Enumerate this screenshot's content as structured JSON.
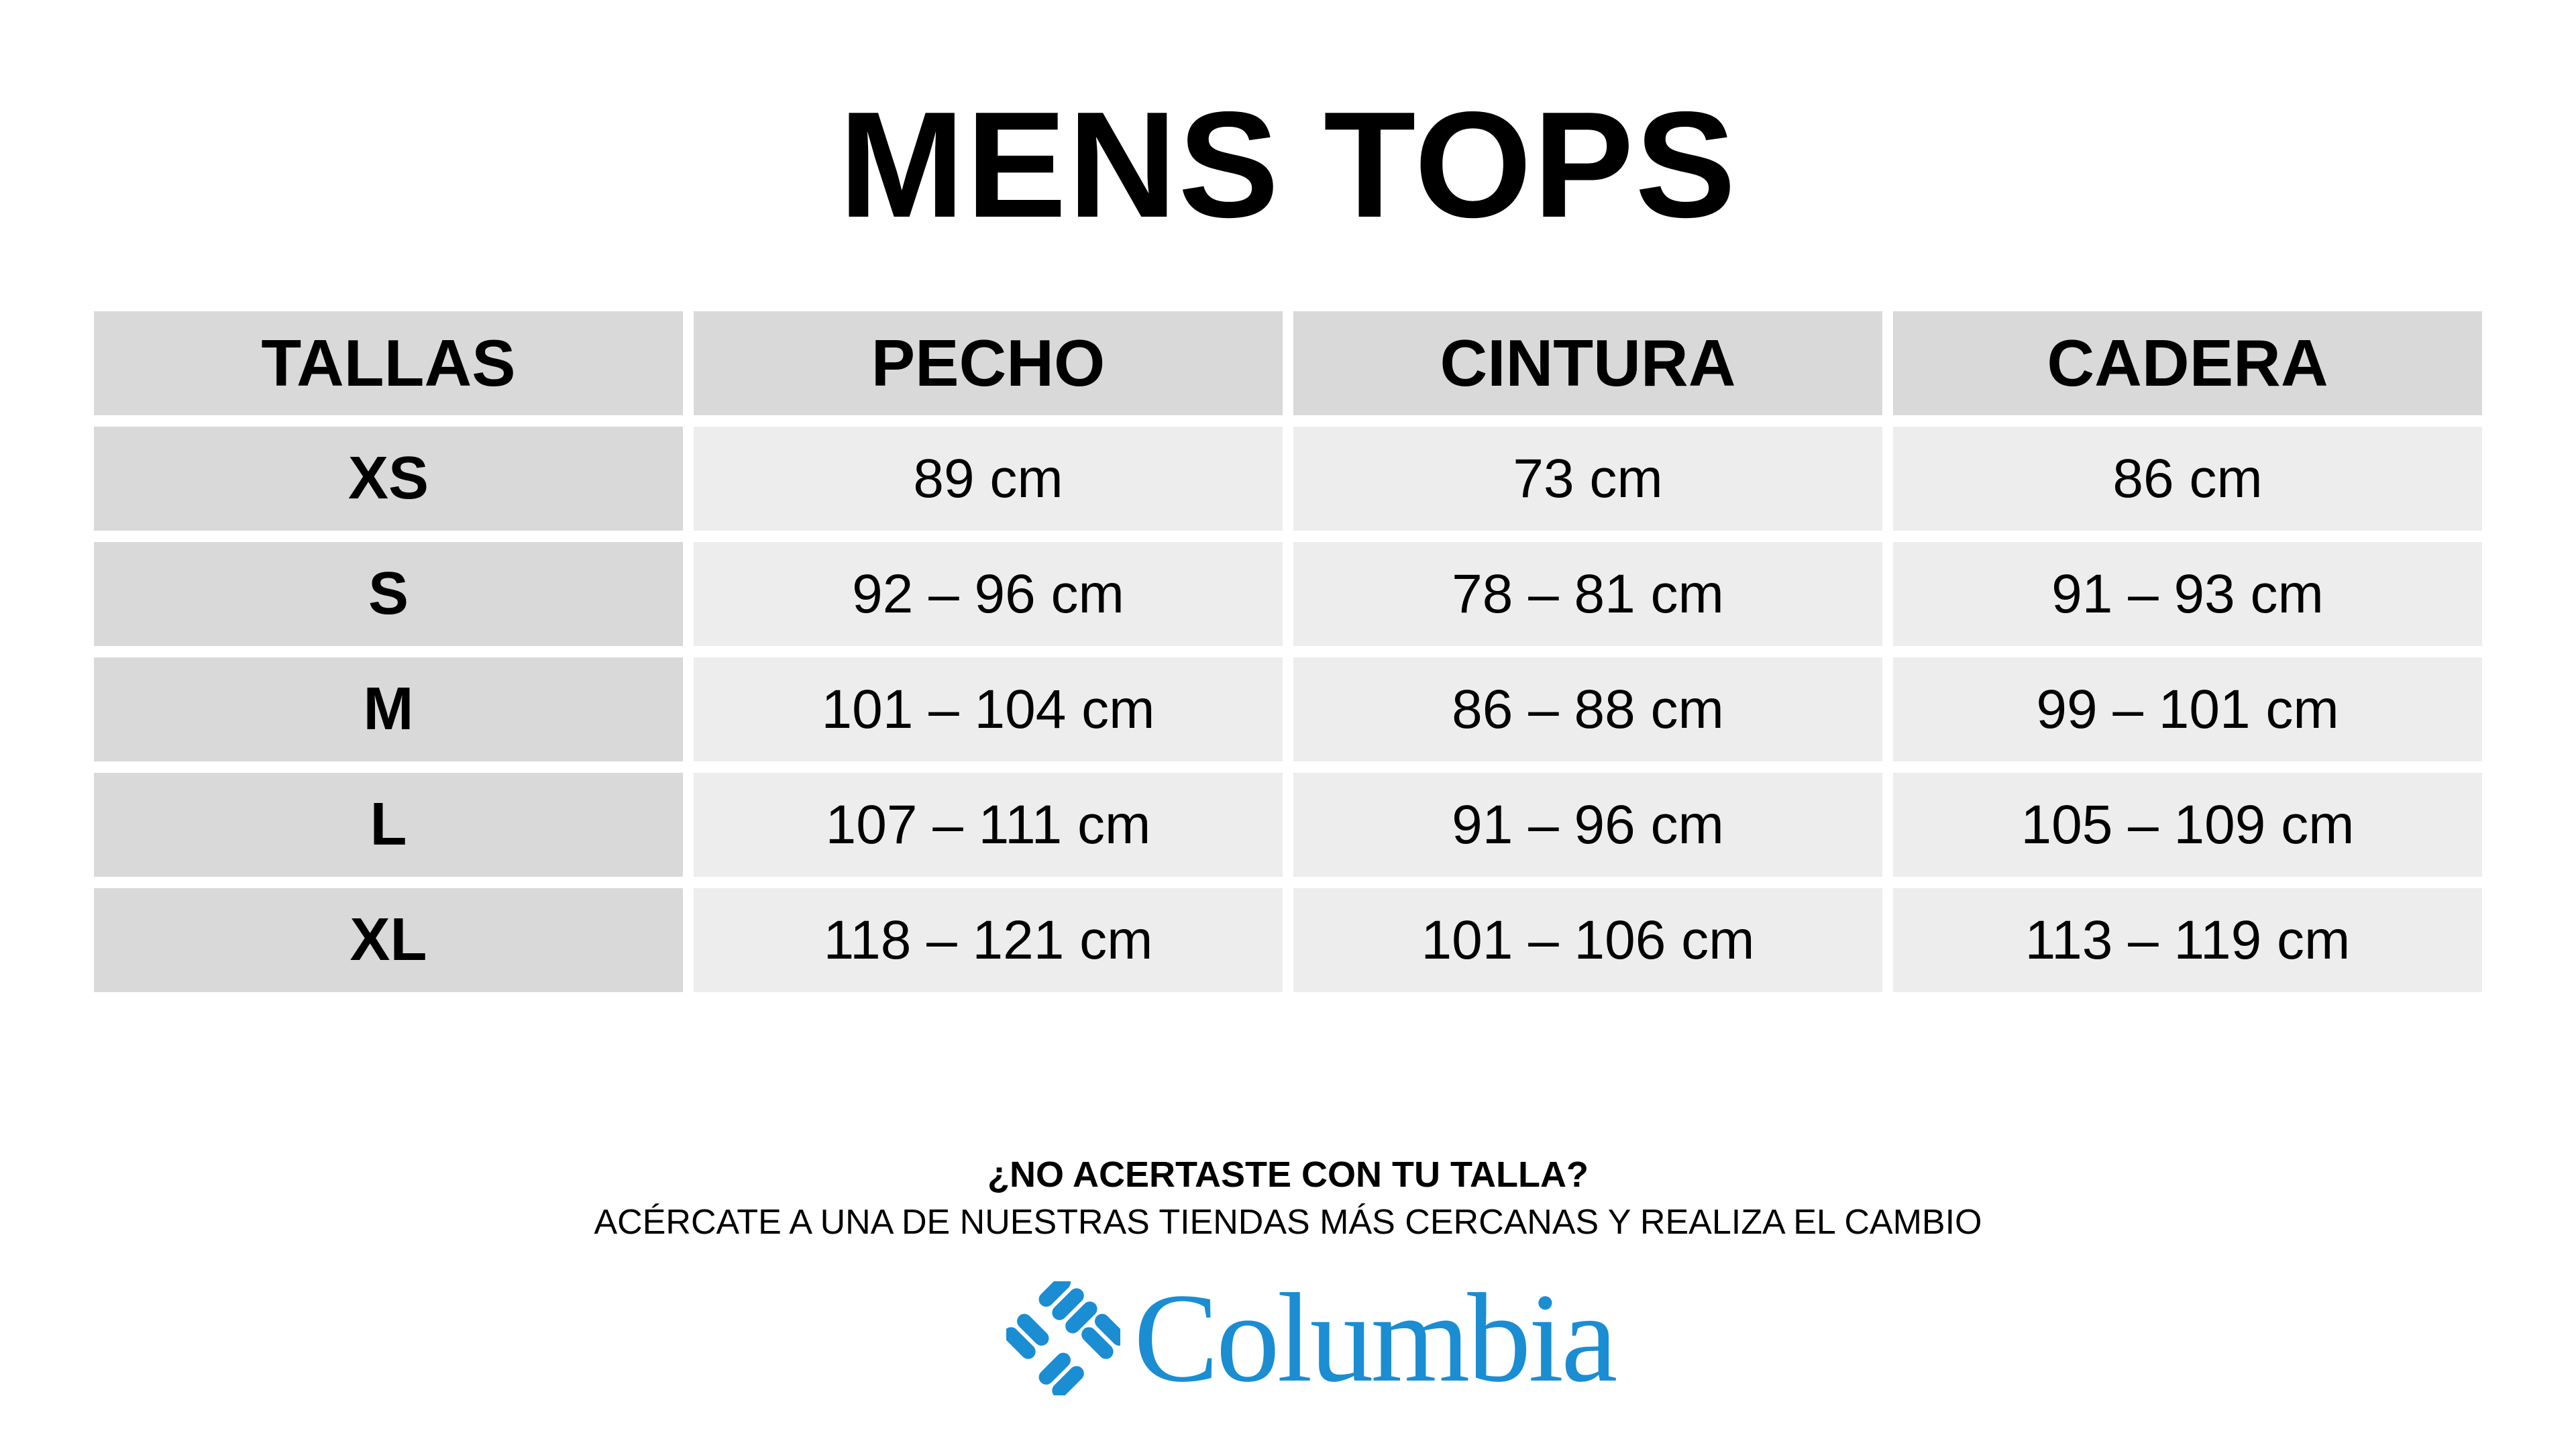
{
  "title": "MENS TOPS",
  "table": {
    "headers": [
      "TALLAS",
      "PECHO",
      "CINTURA",
      "CADERA"
    ],
    "rows": [
      [
        "XS",
        "89 cm",
        "73 cm",
        "86 cm"
      ],
      [
        "S",
        "92 – 96 cm",
        "78 – 81 cm",
        "91 – 93 cm"
      ],
      [
        "M",
        "101 – 104 cm",
        "86 – 88 cm",
        "99 – 101 cm"
      ],
      [
        "L",
        "107 – 111 cm",
        "91 – 96 cm",
        "105 – 109 cm"
      ],
      [
        "XL",
        "118 – 121 cm",
        "101 – 106 cm",
        "113 – 119 cm"
      ]
    ]
  },
  "footer": {
    "question": "¿NO ACERTASTE CON TU TALLA?",
    "message": "ACÉRCATE A UNA DE NUESTRAS TIENDAS MÁS CERCANAS Y REALIZA EL CAMBIO"
  },
  "brand": {
    "name": "Columbia",
    "color": "#1a8dd3",
    "icon": "columbia-diamond-logo-icon"
  },
  "colors": {
    "header_bg": "#d9d9d9",
    "cell_bg": "#ededed"
  }
}
